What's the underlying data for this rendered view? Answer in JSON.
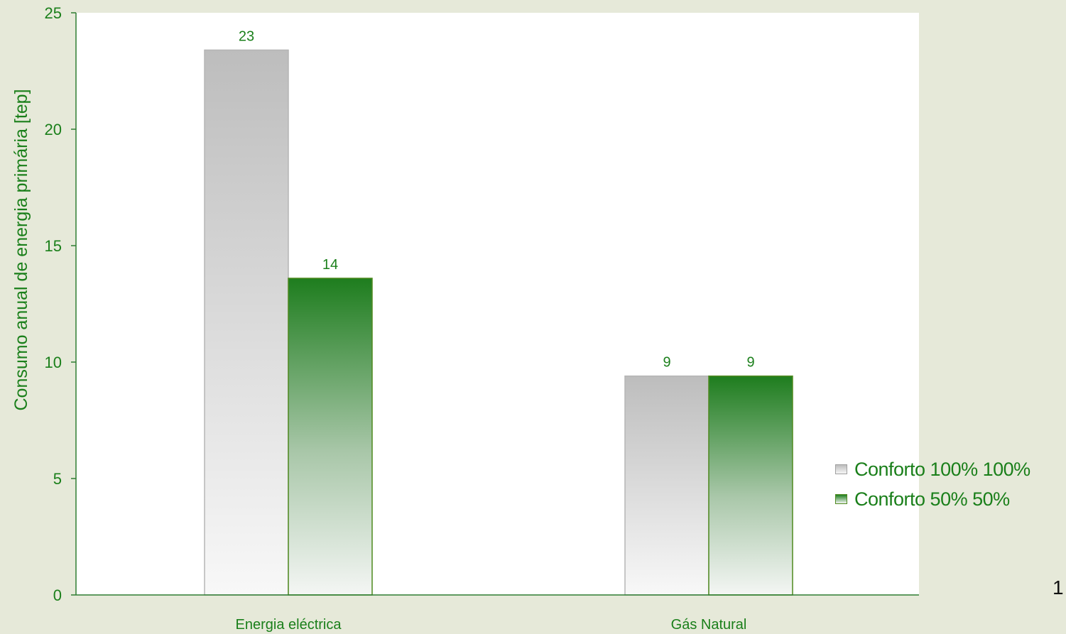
{
  "chart_data": {
    "type": "bar",
    "categories": [
      "Energia eléctrica",
      "Gás Natural"
    ],
    "series": [
      {
        "name": "Conforto 100% 100%",
        "values": [
          23.4,
          9.4
        ],
        "labels": [
          "23",
          "9"
        ]
      },
      {
        "name": "Conforto 50% 50%",
        "values": [
          13.6,
          9.4
        ],
        "labels": [
          "14",
          "9"
        ]
      }
    ],
    "title": "",
    "xlabel": "",
    "ylabel": "Consumo anual de energia primária [tep]",
    "ylim": [
      0,
      25
    ],
    "yticks": [
      0,
      5,
      10,
      15,
      20,
      25
    ],
    "grid": false,
    "legend_position": "right"
  },
  "colors": {
    "background": "#e6e9d9",
    "plot_area": "#ffffff",
    "axis": "#2e7d32",
    "text_green": "#1a7f1a",
    "series_1_top": "#bdbdbd",
    "series_1_bottom": "#f7f7f7",
    "series_2_top": "#1e7d1e",
    "series_2_bottom": "#f2f4f2"
  },
  "page_number": "1"
}
